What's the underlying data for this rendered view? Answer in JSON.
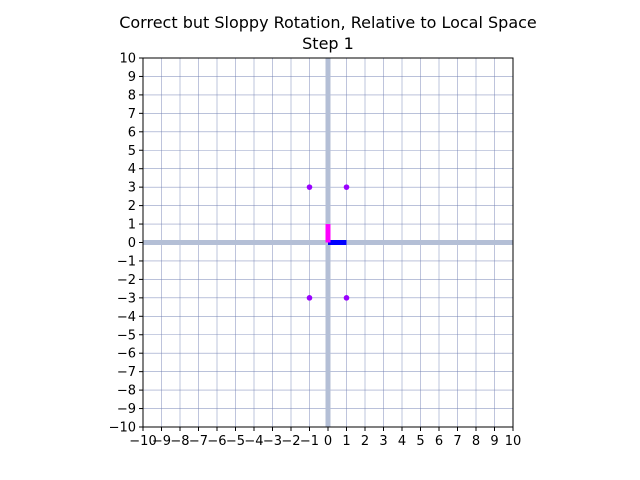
{
  "chart_data": {
    "type": "scatter",
    "title": "Correct but Sloppy Rotation, Relative to Local Space",
    "subtitle": "Step 1",
    "xlim": [
      -10,
      10
    ],
    "ylim": [
      -10,
      10
    ],
    "xticks": [
      -10,
      -9,
      -8,
      -7,
      -6,
      -5,
      -4,
      -3,
      -2,
      -1,
      0,
      1,
      2,
      3,
      4,
      5,
      6,
      7,
      8,
      9,
      10
    ],
    "yticks": [
      -10,
      -9,
      -8,
      -7,
      -6,
      -5,
      -4,
      -3,
      -2,
      -1,
      0,
      1,
      2,
      3,
      4,
      5,
      6,
      7,
      8,
      9,
      10
    ],
    "xtick_labels": [
      "−10",
      "−9",
      "−8",
      "−7",
      "−6",
      "−5",
      "−4",
      "−3",
      "−2",
      "−1",
      "0",
      "1",
      "2",
      "3",
      "4",
      "5",
      "6",
      "7",
      "8",
      "9",
      "10"
    ],
    "ytick_labels": [
      "−10",
      "−9",
      "−8",
      "−7",
      "−6",
      "−5",
      "−4",
      "−3",
      "−2",
      "−1",
      "0",
      "1",
      "2",
      "3",
      "4",
      "5",
      "6",
      "7",
      "8",
      "9",
      "10"
    ],
    "grid": true,
    "origin_axes": {
      "color": "#b4bfd6"
    },
    "local_axes": [
      {
        "axis": "x",
        "from": [
          0,
          0
        ],
        "to": [
          1,
          0
        ],
        "color": "#0000ff"
      },
      {
        "axis": "y",
        "from": [
          0,
          0
        ],
        "to": [
          0,
          1
        ],
        "color": "#ff00ff"
      }
    ],
    "points": [
      {
        "x": -1,
        "y": 3
      },
      {
        "x": 1,
        "y": 3
      },
      {
        "x": -1,
        "y": -3
      },
      {
        "x": 1,
        "y": -3
      }
    ],
    "point_color": "#9900ff",
    "grid_color": "#6d7cb0"
  }
}
